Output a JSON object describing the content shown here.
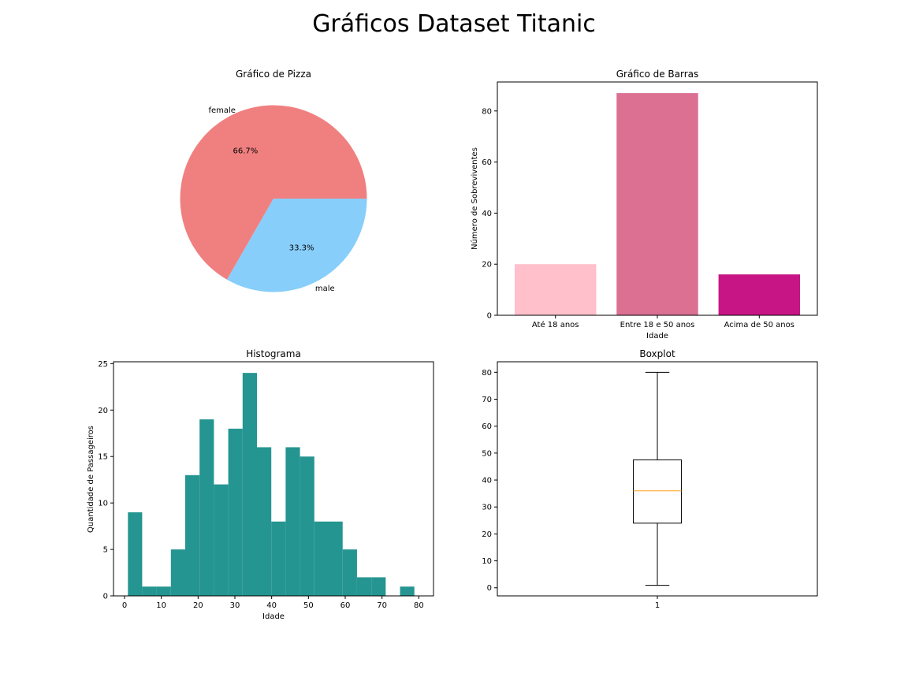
{
  "figure": {
    "suptitle": "Gráficos Dataset Titanic"
  },
  "chart_data": [
    {
      "type": "pie",
      "title": "Gráfico de Pizza",
      "labels": [
        "female",
        "male"
      ],
      "values": [
        66.7,
        33.3
      ],
      "autopct": [
        "66.7%",
        "33.3%"
      ],
      "colors": [
        "#f08080",
        "#87cefa"
      ]
    },
    {
      "type": "bar",
      "title": "Gráfico de Barras",
      "categories": [
        "Até 18 anos",
        "Entre 18 e 50 anos",
        "Acima de 50 anos"
      ],
      "values": [
        20,
        87,
        16
      ],
      "colors": [
        "#ffc0cb",
        "#db7093",
        "#c71585"
      ],
      "xlabel": "Idade",
      "ylabel": "Número de Sobreviventes",
      "ylim": [
        0,
        91.35
      ],
      "yticks": [
        0,
        20,
        40,
        60,
        80
      ]
    },
    {
      "type": "histogram",
      "title": "Histograma",
      "xlabel": "Idade",
      "ylabel": "Quantidade de Passageiros",
      "color": "#259591",
      "bin_edges": [
        0.92,
        4.8,
        8.7,
        12.6,
        16.5,
        20.4,
        24.3,
        28.2,
        32.1,
        36.0,
        39.9,
        43.8,
        47.7,
        51.6,
        55.5,
        59.3,
        63.2,
        67.1,
        71.0,
        74.9,
        78.8,
        80.0
      ],
      "counts": [
        9,
        1,
        1,
        5,
        13,
        19,
        12,
        18,
        24,
        16,
        8,
        16,
        15,
        8,
        8,
        5,
        2,
        2,
        0,
        1,
        0
      ],
      "xlim": [
        -3.0,
        84.0
      ],
      "ylim": [
        0,
        25.2
      ],
      "xticks": [
        0,
        10,
        20,
        30,
        40,
        50,
        60,
        70,
        80
      ],
      "yticks": [
        0,
        5,
        10,
        15,
        20,
        25
      ]
    },
    {
      "type": "boxplot",
      "title": "Boxplot",
      "categories": [
        "1"
      ],
      "whisker_low": 0.92,
      "q1": 24,
      "median": 36,
      "q3": 47.5,
      "whisker_high": 80,
      "median_color": "#ff9f1c",
      "ylim": [
        -3.0,
        83.9
      ],
      "yticks": [
        0,
        10,
        20,
        30,
        40,
        50,
        60,
        70,
        80
      ]
    }
  ]
}
